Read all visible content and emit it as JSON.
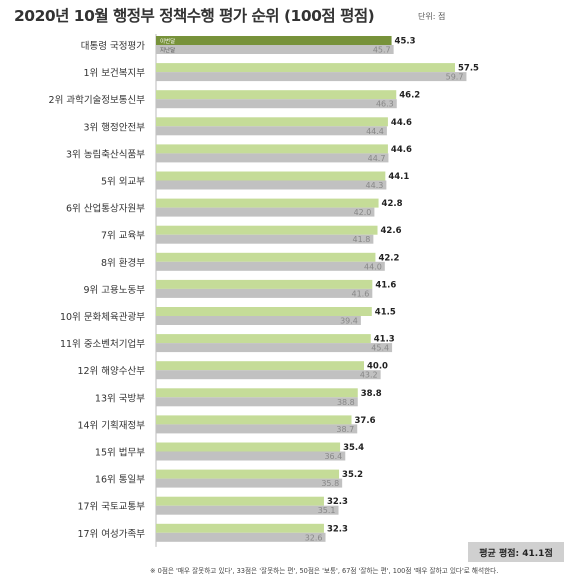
{
  "title": "2020년 10월 행정부 정책수행 평가 순위 (100점 평점)",
  "unit": "단위: 점",
  "average_label": "평균 평점: 41.1점",
  "footnote": "※ 0점은 '매우 잘못하고 있다', 33점은 '잘못하는 편', 50점은 '보통', 67점 '잘하는 편', 100점 '매우 잘하고 있다'로 해석한다.",
  "colors": {
    "current": "#c5dc98",
    "previous": "#c1c1c1",
    "highlight": "#77923a"
  },
  "chart_data": {
    "type": "bar",
    "orientation": "horizontal",
    "title": "2020년 10월 행정부 정책수행 평가 순위 (100점 평점)",
    "categories": [
      "대통령 국정평가",
      "1위 보건복지부",
      "2위 과학기술정보통신부",
      "3위 행정안전부",
      "3위 농림축산식품부",
      "5위 외교부",
      "6위 산업통상자원부",
      "7위 교육부",
      "8위 환경부",
      "9위 고용노동부",
      "10위 문화체육관광부",
      "11위 중소벤처기업부",
      "12위 해양수산부",
      "13위 국방부",
      "14위 기획재정부",
      "15위 법무부",
      "16위 통일부",
      "17위 국토교통부",
      "17위 여성가족부"
    ],
    "series": [
      {
        "name": "이번달",
        "values": [
          45.3,
          57.5,
          46.2,
          44.6,
          44.6,
          44.1,
          42.8,
          42.6,
          42.2,
          41.6,
          41.5,
          41.3,
          40.0,
          38.8,
          37.6,
          35.4,
          35.2,
          32.3,
          32.3
        ]
      },
      {
        "name": "지난달",
        "values": [
          45.7,
          59.7,
          46.3,
          44.4,
          44.7,
          44.3,
          42.0,
          41.8,
          44.0,
          41.6,
          39.4,
          45.4,
          43.2,
          38.8,
          38.7,
          36.4,
          35.8,
          35.1,
          32.6
        ]
      }
    ],
    "highlight_category": "대통령 국정평가",
    "average": 41.1,
    "xlim": [
      0,
      60
    ],
    "grid": false
  }
}
